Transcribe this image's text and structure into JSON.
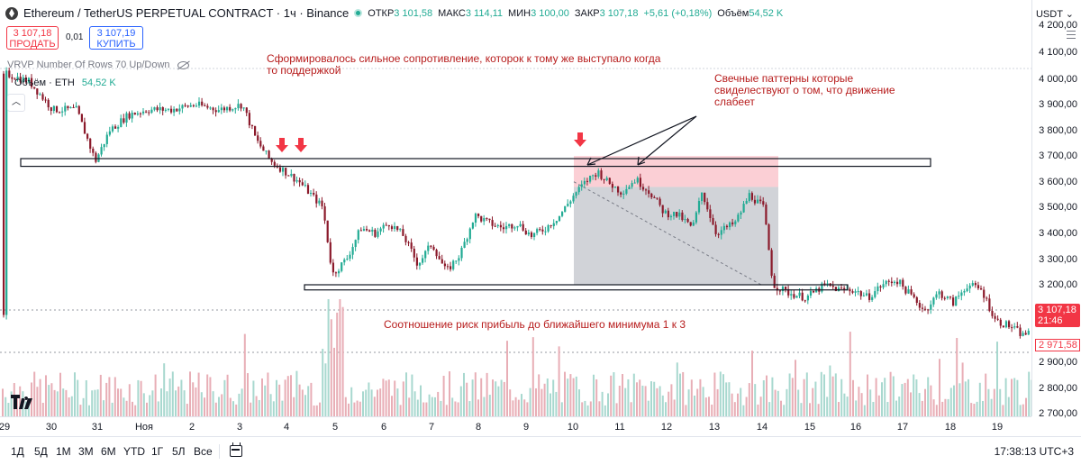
{
  "header": {
    "symbol": "Ethereum / TetherUS PERPETUAL CONTRACT · 1ч · Binance",
    "open_label": "ОТКР",
    "open": "3 101,58",
    "high_label": "МАКС",
    "high": "3 114,11",
    "low_label": "МИН",
    "low": "3 100,00",
    "close_label": "ЗАКР",
    "close": "3 107,18",
    "change": "+5,61 (+0,18%)",
    "volume_label": "Объём",
    "volume": "54,52 K"
  },
  "trade": {
    "sell_price": "3 107,18",
    "sell_label": "ПРОДАТЬ",
    "spread": "0,01",
    "buy_price": "3 107,19",
    "buy_label": "КУПИТЬ"
  },
  "indicators": {
    "vrvp": "VRVP Number Of Rows 70 Up/Down",
    "volume_name": "Объём · ETH",
    "volume_value": "54,52 K"
  },
  "annotations": {
    "resistance": "Сформировалось сильное сопротивление, которок к тому же выступало когда то поддержкой",
    "patterns": "Свечные паттерны которые свиделествуют о том, что движение слабеет",
    "risk_reward": "Соотношение риск прибыль до ближайшего минимума 1 к 3"
  },
  "price_scale": {
    "currency": "USDT",
    "ticks": [
      "4 200,00",
      "4 100,00",
      "4 000,00",
      "3 900,00",
      "3 800,00",
      "3 700,00",
      "3 600,00",
      "3 500,00",
      "3 400,00",
      "3 300,00",
      "3 200,00",
      "2 900,00",
      "2 800,00",
      "2 700,00"
    ],
    "current_price": "3 107,18",
    "countdown": "21:46",
    "low_marker": "2 971,58"
  },
  "time_axis": {
    "labels": [
      "29",
      "30",
      "31",
      "Ноя",
      "2",
      "3",
      "4",
      "5",
      "6",
      "7",
      "8",
      "9",
      "10",
      "11",
      "12",
      "13",
      "14",
      "15",
      "16",
      "17",
      "18",
      "19"
    ]
  },
  "bottom_bar": {
    "ranges": [
      "1Д",
      "5Д",
      "1М",
      "3М",
      "6М",
      "YTD",
      "1Г",
      "5Л",
      "Все"
    ],
    "clock": "17:38:13 UTC+3"
  },
  "logo_text": "TV",
  "colors": {
    "up": "#22ab94",
    "down": "#8b1a2b",
    "annotation": "#b71c1c",
    "arrow": "#f23645",
    "short_zone_profit": "#b2b5be",
    "short_zone_loss": "#f7a8b2"
  },
  "chart_data": {
    "type": "candlestick",
    "title": "Ethereum / TetherUS PERPETUAL CONTRACT · 1ч · Binance",
    "x_labels": [
      "29",
      "30",
      "31",
      "Ноя",
      "2",
      "3",
      "4",
      "5",
      "6",
      "7",
      "8",
      "9",
      "10",
      "11",
      "12",
      "13",
      "14",
      "15",
      "16",
      "17",
      "18",
      "19"
    ],
    "close_path": [
      [
        0.0,
        4020
      ],
      [
        0.5,
        3990
      ],
      [
        1.0,
        3880
      ],
      [
        1.5,
        3880
      ],
      [
        1.9,
        3680
      ],
      [
        2.2,
        3800
      ],
      [
        2.6,
        3860
      ],
      [
        3.0,
        3880
      ],
      [
        3.5,
        3880
      ],
      [
        4.0,
        3900
      ],
      [
        4.5,
        3880
      ],
      [
        5.0,
        3900
      ],
      [
        5.3,
        3760
      ],
      [
        5.6,
        3680
      ],
      [
        5.9,
        3640
      ],
      [
        6.2,
        3600
      ],
      [
        6.4,
        3560
      ],
      [
        6.7,
        3500
      ],
      [
        6.9,
        3240
      ],
      [
        7.2,
        3300
      ],
      [
        7.5,
        3420
      ],
      [
        7.8,
        3400
      ],
      [
        8.1,
        3440
      ],
      [
        8.4,
        3390
      ],
      [
        8.7,
        3280
      ],
      [
        9.0,
        3360
      ],
      [
        9.3,
        3250
      ],
      [
        9.6,
        3320
      ],
      [
        9.9,
        3470
      ],
      [
        10.2,
        3440
      ],
      [
        10.5,
        3420
      ],
      [
        10.8,
        3440
      ],
      [
        11.1,
        3390
      ],
      [
        11.4,
        3420
      ],
      [
        11.7,
        3470
      ],
      [
        12.0,
        3550
      ],
      [
        12.3,
        3610
      ],
      [
        12.5,
        3640
      ],
      [
        12.7,
        3600
      ],
      [
        13.0,
        3560
      ],
      [
        13.3,
        3610
      ],
      [
        13.6,
        3560
      ],
      [
        13.9,
        3480
      ],
      [
        14.2,
        3470
      ],
      [
        14.5,
        3420
      ],
      [
        14.7,
        3560
      ],
      [
        15.0,
        3400
      ],
      [
        15.4,
        3440
      ],
      [
        15.7,
        3550
      ],
      [
        16.0,
        3500
      ],
      [
        16.2,
        3200
      ],
      [
        16.5,
        3170
      ],
      [
        16.9,
        3150
      ],
      [
        17.3,
        3200
      ],
      [
        17.6,
        3180
      ],
      [
        17.9,
        3180
      ],
      [
        18.2,
        3150
      ],
      [
        18.5,
        3200
      ],
      [
        18.8,
        3220
      ],
      [
        19.1,
        3160
      ],
      [
        19.4,
        3100
      ],
      [
        19.7,
        3170
      ],
      [
        20.0,
        3130
      ],
      [
        20.3,
        3200
      ],
      [
        20.6,
        3180
      ],
      [
        20.9,
        3060
      ],
      [
        21.2,
        3040
      ],
      [
        21.5,
        3000
      ],
      [
        21.8,
        3090
      ],
      [
        22.1,
        3150
      ],
      [
        22.4,
        3100
      ],
      [
        22.7,
        3060
      ],
      [
        23.0,
        3020
      ],
      [
        23.3,
        3070
      ]
    ],
    "resistance_zone": [
      3660,
      3690
    ],
    "support_zone": [
      3180,
      3200
    ],
    "ylim": [
      2700,
      4200
    ],
    "xlabel": "",
    "ylabel": ""
  }
}
